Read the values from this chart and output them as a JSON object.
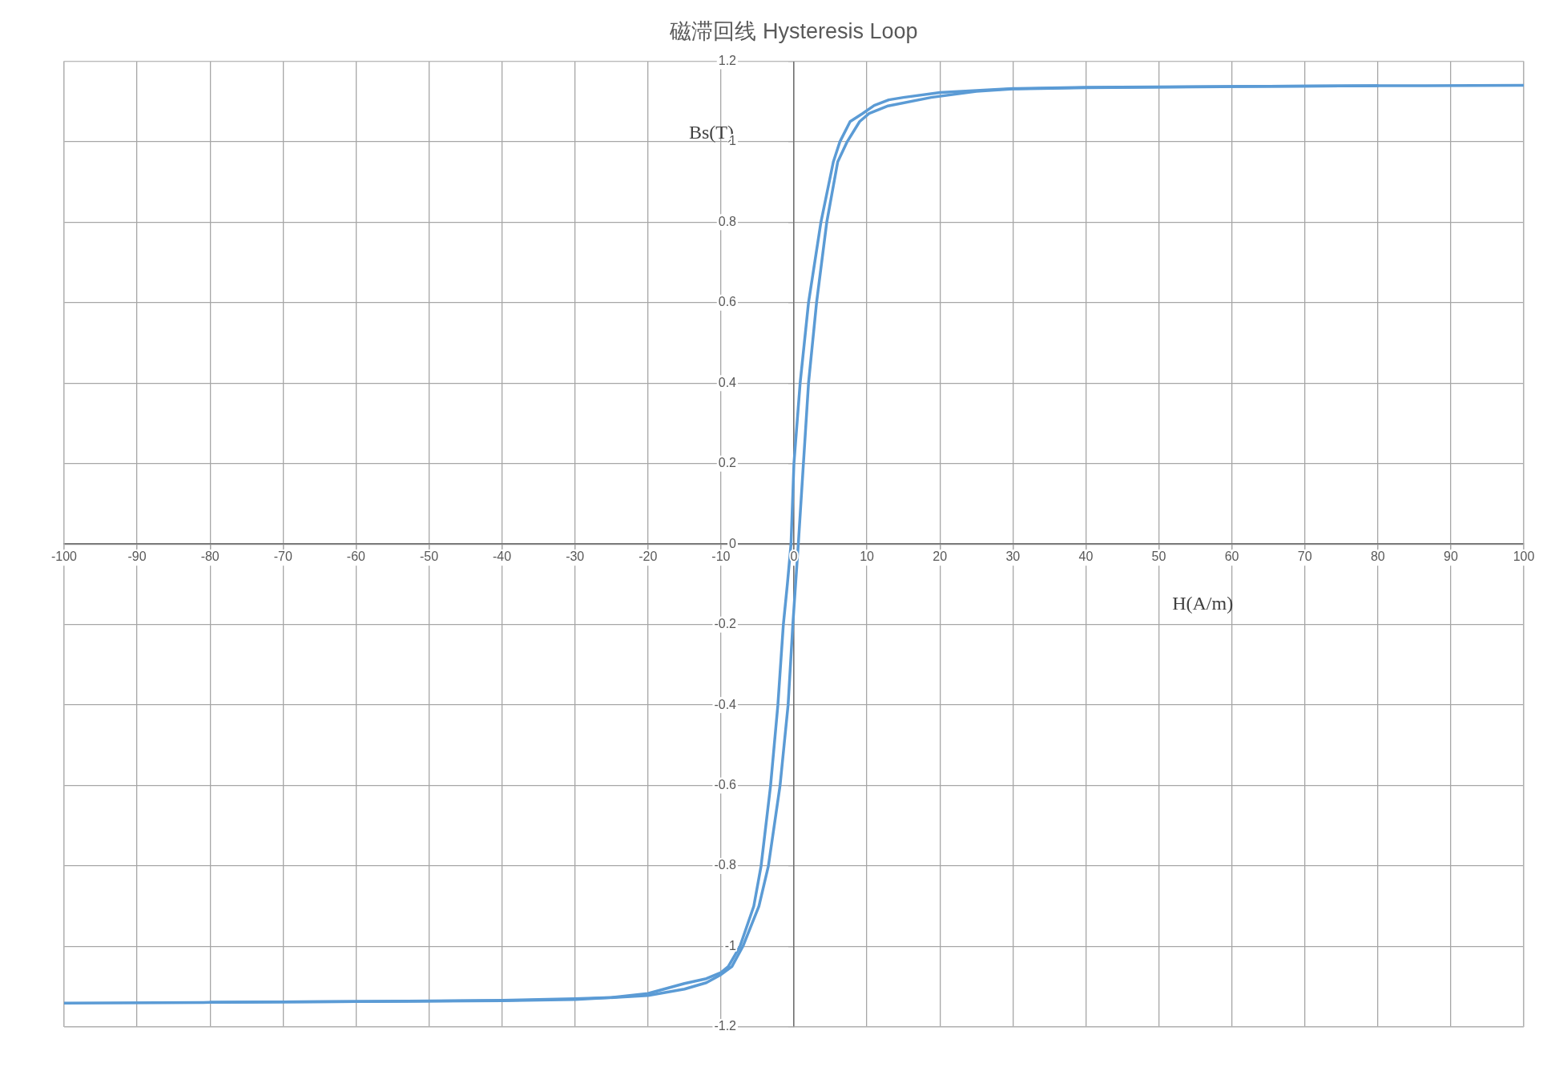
{
  "chart_data": {
    "type": "line",
    "title": "磁滞回线 Hysteresis Loop",
    "xlabel": "H(A/m)",
    "ylabel": "Bs(T)",
    "xlim": [
      -100,
      100
    ],
    "xticks": [
      -100,
      -90,
      -80,
      -70,
      -60,
      -50,
      -40,
      -30,
      -20,
      -10,
      0,
      10,
      20,
      30,
      40,
      50,
      60,
      70,
      80,
      90,
      100
    ],
    "ylim": [
      -1.2,
      1.2
    ],
    "yticks": [
      -1.2,
      -1,
      -0.8,
      -0.6,
      -0.4,
      -0.2,
      0,
      0.2,
      0.4,
      0.6,
      0.8,
      1,
      1.2
    ],
    "grid": true,
    "marker": "none",
    "line_style": "solid",
    "series": [
      {
        "color": "#5b9bd5",
        "x": [
          100,
          80,
          60,
          40,
          30,
          20,
          15,
          13,
          11,
          9.4,
          7.7,
          6.3,
          5.4,
          3.7,
          2,
          0.85,
          0,
          -0.4,
          -0.9,
          -1.45,
          -2.2,
          -3.2,
          -4.5,
          -5.5,
          -7.4,
          -9,
          -10,
          -12,
          -15,
          -20,
          -25,
          -30,
          -40,
          -60,
          -80,
          -100
        ],
        "values": [
          1.14,
          1.139,
          1.137,
          1.135,
          1.132,
          1.122,
          1.11,
          1.104,
          1.09,
          1.07,
          1.05,
          1,
          0.95,
          0.8,
          0.6,
          0.4,
          0.2,
          0,
          -0.1,
          -0.2,
          -0.4,
          -0.6,
          -0.8,
          -0.9,
          -1,
          -1.05,
          -1.065,
          -1.08,
          -1.092,
          -1.117,
          -1.127,
          -1.13,
          -1.134,
          -1.137,
          -1.139,
          -1.141
        ]
      },
      {
        "color": "#5b9bd5",
        "x": [
          -80,
          -60,
          -40,
          -30,
          -20,
          -15,
          -12,
          -10,
          -8.5,
          -7,
          -4.8,
          -3.5,
          -1.9,
          -0.8,
          -0.15,
          0.6,
          1.3,
          2,
          3.1,
          4.5,
          6,
          7.3,
          9,
          10.3,
          12.9,
          18.8,
          25,
          30,
          40,
          60,
          80
        ],
        "values": [
          -1.139,
          -1.137,
          -1.135,
          -1.132,
          -1.122,
          -1.106,
          -1.09,
          -1.07,
          -1.05,
          -1,
          -0.9,
          -0.8,
          -0.6,
          -0.4,
          -0.2,
          0,
          0.2,
          0.4,
          0.6,
          0.8,
          0.95,
          1,
          1.05,
          1.07,
          1.089,
          1.11,
          1.125,
          1.131,
          1.134,
          1.137,
          1.139
        ]
      }
    ]
  }
}
